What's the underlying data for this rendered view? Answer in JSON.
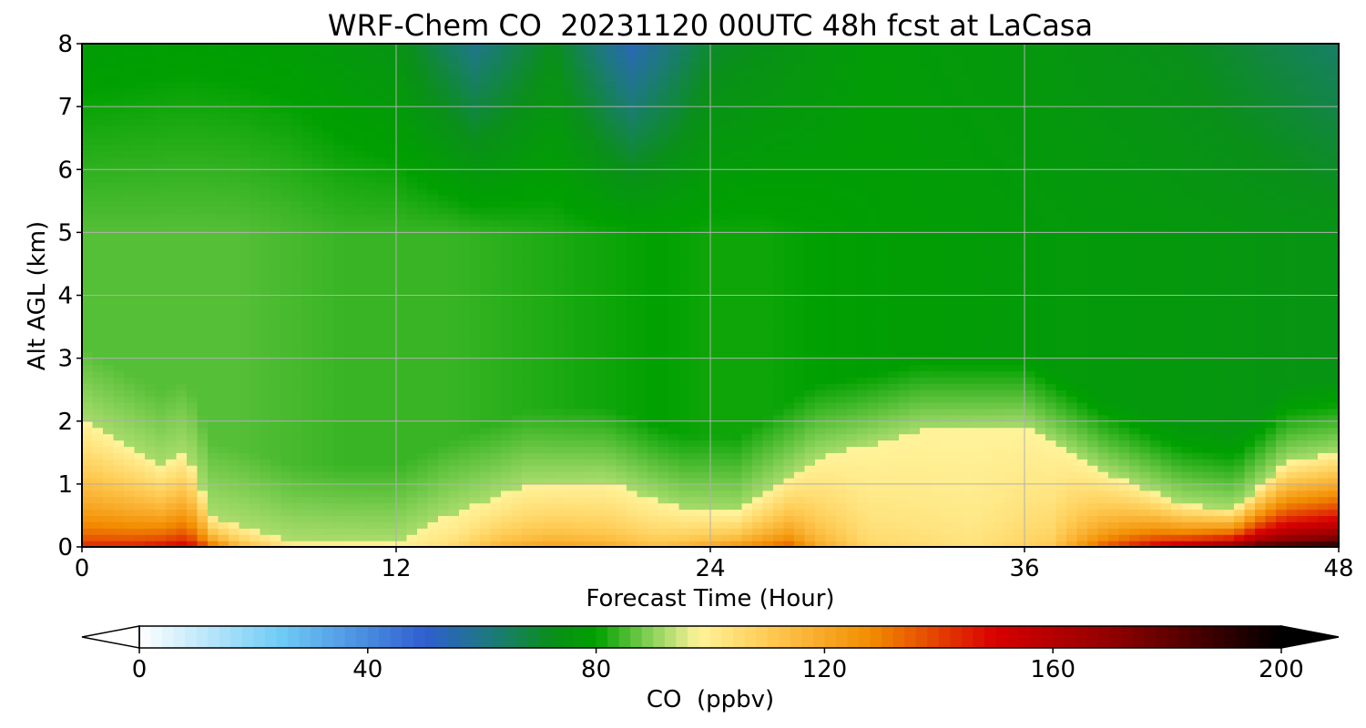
{
  "chart_data": {
    "type": "heatmap",
    "title": "WRF-Chem CO  20231120 00UTC 48h fcst at LaCasa",
    "xlabel": "Forecast Time (Hour)",
    "ylabel": "Alt AGL (km)",
    "xlim": [
      0,
      48
    ],
    "ylim": [
      0,
      8
    ],
    "x_ticks": [
      "0",
      "12",
      "24",
      "36",
      "48"
    ],
    "y_ticks": [
      "0",
      "1",
      "2",
      "3",
      "4",
      "5",
      "6",
      "7",
      "8"
    ],
    "grid": true,
    "colorbar": {
      "label": "CO  (ppbv)",
      "range": [
        0,
        200
      ],
      "ticks": [
        "0",
        "40",
        "80",
        "120",
        "160",
        "200"
      ],
      "extend": "both",
      "colors": [
        {
          "value": 0,
          "color": "#ffffff"
        },
        {
          "value": 25,
          "color": "#6ecbf5"
        },
        {
          "value": 50,
          "color": "#2f5fd0"
        },
        {
          "value": 62,
          "color": "#1c7a7a"
        },
        {
          "value": 72,
          "color": "#0a8f1a"
        },
        {
          "value": 80,
          "color": "#00a000"
        },
        {
          "value": 90,
          "color": "#8ed35c"
        },
        {
          "value": 98,
          "color": "#fff39a"
        },
        {
          "value": 110,
          "color": "#ffcc55"
        },
        {
          "value": 128,
          "color": "#f28c00"
        },
        {
          "value": 150,
          "color": "#d80000"
        },
        {
          "value": 172,
          "color": "#8a0000"
        },
        {
          "value": 200,
          "color": "#000000"
        }
      ]
    },
    "surface_co": [
      [
        0,
        148
      ],
      [
        2,
        150
      ],
      [
        4,
        158
      ],
      [
        5,
        140
      ],
      [
        6,
        120
      ],
      [
        7,
        112
      ],
      [
        8,
        104
      ],
      [
        12,
        100
      ],
      [
        14,
        106
      ],
      [
        16,
        120
      ],
      [
        18,
        125
      ],
      [
        20,
        122
      ],
      [
        22,
        116
      ],
      [
        24,
        125
      ],
      [
        26,
        135
      ],
      [
        27,
        140
      ],
      [
        28,
        124
      ],
      [
        30,
        108
      ],
      [
        34,
        104
      ],
      [
        37,
        112
      ],
      [
        39,
        140
      ],
      [
        41,
        160
      ],
      [
        43,
        175
      ],
      [
        45,
        195
      ],
      [
        48,
        205
      ]
    ],
    "polluted_layer_top_km": [
      [
        0,
        2.0
      ],
      [
        3,
        1.3
      ],
      [
        4,
        1.5
      ],
      [
        5,
        0.5
      ],
      [
        8,
        0.12
      ],
      [
        12,
        0.1
      ],
      [
        14,
        0.5
      ],
      [
        17,
        1.0
      ],
      [
        20,
        1.05
      ],
      [
        23,
        0.6
      ],
      [
        25,
        0.55
      ],
      [
        28,
        1.4
      ],
      [
        32,
        1.85
      ],
      [
        36,
        1.9
      ],
      [
        39,
        1.2
      ],
      [
        42,
        0.7
      ],
      [
        44,
        0.6
      ],
      [
        46,
        1.35
      ],
      [
        48,
        1.5
      ]
    ],
    "mid_troposphere_co": [
      [
        0,
        86
      ],
      [
        6,
        86
      ],
      [
        10,
        84
      ],
      [
        14,
        84
      ],
      [
        18,
        82
      ],
      [
        22,
        80
      ],
      [
        24,
        81
      ],
      [
        26,
        81
      ],
      [
        30,
        79
      ],
      [
        34,
        78
      ],
      [
        38,
        77
      ],
      [
        42,
        76
      ],
      [
        48,
        74
      ]
    ],
    "upper_troposphere_co": [
      [
        0,
        78
      ],
      [
        4,
        79
      ],
      [
        8,
        78
      ],
      [
        12,
        74
      ],
      [
        15,
        60
      ],
      [
        18,
        72
      ],
      [
        21,
        54
      ],
      [
        24,
        70
      ],
      [
        30,
        78
      ],
      [
        36,
        76
      ],
      [
        42,
        72
      ],
      [
        48,
        64
      ]
    ]
  }
}
